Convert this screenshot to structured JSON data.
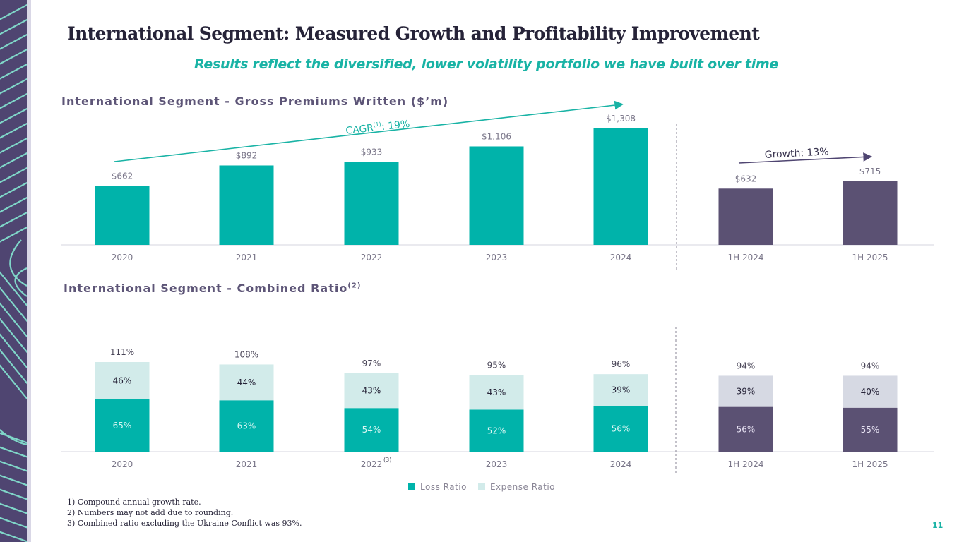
{
  "slide": {
    "title": "International Segment: Measured Growth and Profitability Improvement",
    "subtitle": "Results reflect the diversified, lower volatility portfolio we have built over time",
    "page_number": "11",
    "footnotes": [
      "1)  Compound annual growth rate.",
      "2)  Numbers may not add due to rounding.",
      "3)  Combined ratio excluding the Ukraine Conflict was 93%."
    ]
  },
  "colors": {
    "teal": "#00b3aa",
    "purple": "#5b5173",
    "light_teal": "#d2ebea",
    "light_gray": "#d6d9e3",
    "label_gray": "#7a7689"
  },
  "chart_data": [
    {
      "type": "bar",
      "title": "International Segment - Gross Premiums Written ($’m)",
      "categories": [
        "2020",
        "2021",
        "2022",
        "2023",
        "2024",
        "1H 2024",
        "1H 2025"
      ],
      "values": [
        662,
        892,
        933,
        1106,
        1308,
        632,
        715
      ],
      "data_labels": [
        "$662",
        "$892",
        "$933",
        "$1,106",
        "$1,308",
        "$632",
        "$715"
      ],
      "series_groups": [
        "annual",
        "annual",
        "annual",
        "annual",
        "annual",
        "half-year",
        "half-year"
      ],
      "annotations": [
        {
          "text": "CAGR",
          "superscript": "(1)",
          "value": ": 19%",
          "spans": [
            "2020",
            "2024"
          ]
        },
        {
          "text": "Growth: 13%",
          "spans": [
            "1H 2024",
            "1H 2025"
          ]
        }
      ],
      "xlabel": "",
      "ylabel": "",
      "grid": false
    },
    {
      "type": "bar",
      "stacked": true,
      "title": "International Segment - Combined Ratio",
      "title_superscript": "(2)",
      "categories": [
        "2020",
        "2021",
        "2022",
        "2023",
        "2024",
        "1H 2024",
        "1H 2025"
      ],
      "category_superscripts": [
        "",
        "",
        "(3)",
        "",
        "",
        "",
        ""
      ],
      "series": [
        {
          "name": "Loss Ratio",
          "values": [
            65,
            63,
            54,
            52,
            56,
            56,
            55
          ]
        },
        {
          "name": "Expense Ratio",
          "values": [
            46,
            44,
            43,
            43,
            39,
            39,
            40
          ]
        }
      ],
      "totals": [
        111,
        108,
        97,
        95,
        96,
        94,
        94
      ],
      "legend": [
        "Loss Ratio",
        "Expense Ratio"
      ],
      "legend_position": "bottom",
      "xlabel": "",
      "ylabel": "",
      "grid": false
    }
  ]
}
